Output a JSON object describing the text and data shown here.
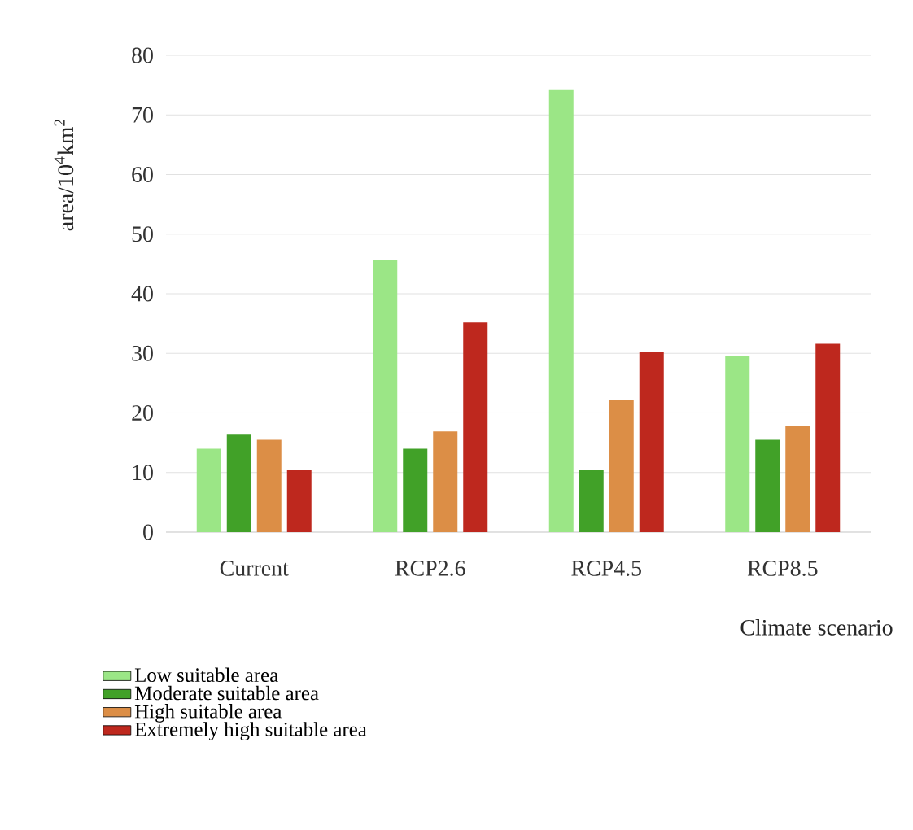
{
  "chart_data": {
    "type": "bar",
    "xlabel": "Climate scenario",
    "ylabel": "area/10$^{4}$km$^{2}$",
    "categories": [
      "Current",
      "RCP2.6",
      "RCP4.5",
      "RCP8.5"
    ],
    "series": [
      {
        "name": "Low suitable area",
        "color": "#9be686",
        "values": [
          14.0,
          45.7,
          74.3,
          29.6
        ]
      },
      {
        "name": "Moderate suitable area",
        "color": "#41a128",
        "values": [
          16.5,
          14.0,
          10.5,
          15.5
        ]
      },
      {
        "name": "High suitable area",
        "color": "#dc8e46",
        "values": [
          15.5,
          16.9,
          22.2,
          17.9
        ]
      },
      {
        "name": "Extremely high suitable area",
        "color": "#be281e",
        "values": [
          10.5,
          35.2,
          30.2,
          31.6
        ]
      }
    ],
    "ylim": [
      0,
      80
    ],
    "yticks": [
      0,
      10,
      20,
      30,
      40,
      50,
      60,
      70,
      80
    ],
    "grid": "y",
    "legend": "bottom"
  }
}
